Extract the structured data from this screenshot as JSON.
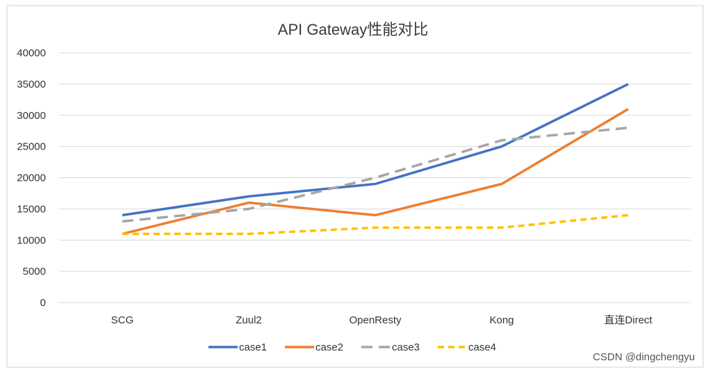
{
  "chart_data": {
    "type": "line",
    "title": "API Gateway性能对比",
    "xlabel": "",
    "ylabel": "",
    "categories": [
      "SCG",
      "Zuul2",
      "OpenResty",
      "Kong",
      "直连Direct"
    ],
    "ylim": [
      0,
      40000
    ],
    "yticks": [
      0,
      5000,
      10000,
      15000,
      20000,
      25000,
      30000,
      35000,
      40000
    ],
    "grid": true,
    "legend_position": "bottom",
    "series": [
      {
        "name": "case1",
        "values": [
          14000,
          17000,
          19000,
          25000,
          35000
        ],
        "color": "#4472c4",
        "dash": "solid"
      },
      {
        "name": "case2",
        "values": [
          11000,
          16000,
          14000,
          19000,
          31000
        ],
        "color": "#ed7d31",
        "dash": "solid"
      },
      {
        "name": "case3",
        "values": [
          13000,
          15000,
          20000,
          26000,
          28000
        ],
        "color": "#a5a5a5",
        "dash": "dash"
      },
      {
        "name": "case4",
        "values": [
          11000,
          11000,
          12000,
          12000,
          14000
        ],
        "color": "#ffc000",
        "dash": "dot"
      }
    ]
  },
  "watermark": "CSDN @dingchengyu",
  "colors": {
    "grid": "#d9d9d9",
    "frame": "#d0d0d0"
  }
}
